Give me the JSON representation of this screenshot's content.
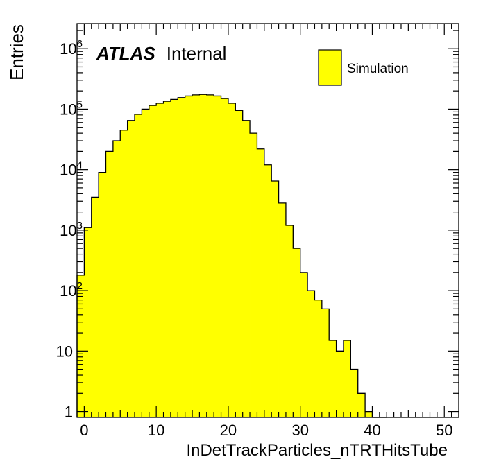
{
  "chart_data": {
    "type": "bar",
    "xlabel": "InDetTrackParticles_nTRTHitsTube",
    "ylabel": "Entries",
    "xlim": [
      -1,
      52
    ],
    "ylim": [
      0.8,
      2600000
    ],
    "yscale": "log",
    "x_ticks": [
      "0",
      "10",
      "20",
      "30",
      "40",
      "50"
    ],
    "y_ticks": [
      {
        "base": "1",
        "exp": ""
      },
      {
        "base": "10",
        "exp": ""
      },
      {
        "base": "10",
        "exp": "2"
      },
      {
        "base": "10",
        "exp": "3"
      },
      {
        "base": "10",
        "exp": "4"
      },
      {
        "base": "10",
        "exp": "5"
      },
      {
        "base": "10",
        "exp": "6"
      }
    ],
    "bin_edges": [
      -1,
      0,
      1,
      2,
      3,
      4,
      5,
      6,
      7,
      8,
      9,
      10,
      11,
      12,
      13,
      14,
      15,
      16,
      17,
      18,
      19,
      20,
      21,
      22,
      23,
      24,
      25,
      26,
      27,
      28,
      29,
      30,
      31,
      32,
      33,
      34,
      35,
      36,
      37,
      38,
      39,
      40,
      41,
      42
    ],
    "series": [
      {
        "name": "Simulation",
        "color": "#ffff00",
        "values": [
          180,
          1100,
          3500,
          9000,
          20000,
          30000,
          45000,
          65000,
          82000,
          100000,
          115000,
          125000,
          135000,
          145000,
          155000,
          165000,
          172000,
          175000,
          172000,
          165000,
          150000,
          125000,
          95000,
          65000,
          40000,
          22000,
          12000,
          6500,
          2800,
          1200,
          500,
          200,
          100,
          70,
          50,
          15,
          10,
          15,
          5,
          2,
          1,
          0,
          0
        ]
      }
    ],
    "legend": {
      "position": "top-right",
      "label": "Simulation"
    },
    "atlas_label": {
      "bold": "ATLAS",
      "text": "Internal"
    }
  }
}
